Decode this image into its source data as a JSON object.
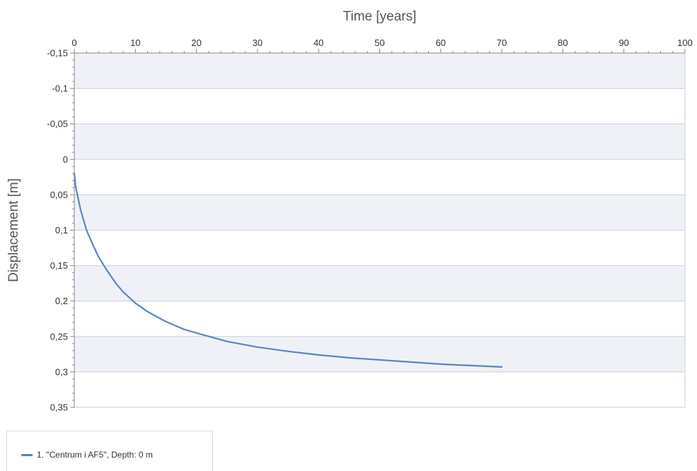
{
  "chart_data": {
    "type": "line",
    "xlabel": "Time [years]",
    "ylabel": "Displacement [m]",
    "xlim": [
      0,
      100
    ],
    "ylim": [
      -0.15,
      0.35
    ],
    "y_inverted": true,
    "x_axis_position": "top",
    "grid": true,
    "alternating_bands": true,
    "x_ticks": [
      "0",
      "10",
      "20",
      "30",
      "40",
      "50",
      "60",
      "70",
      "80",
      "90",
      "100"
    ],
    "y_ticks": [
      "-0,15",
      "-0,1",
      "-0,05",
      "0",
      "0,05",
      "0,1",
      "0,15",
      "0,2",
      "0,25",
      "0,3",
      "0,35"
    ],
    "legend_placement": "bottom-left",
    "series": [
      {
        "name": "1. \"Centrum i AF5\", Depth: 0 m",
        "color": "#5b84c4",
        "x": [
          0,
          0.25,
          0.5,
          1,
          1.5,
          2,
          3,
          4,
          5,
          6,
          7,
          8,
          9,
          10,
          12,
          15,
          18,
          20,
          25,
          30,
          35,
          40,
          45,
          50,
          55,
          60,
          65,
          70
        ],
        "y": [
          0.02,
          0.04,
          0.05,
          0.07,
          0.085,
          0.1,
          0.12,
          0.138,
          0.152,
          0.165,
          0.177,
          0.187,
          0.195,
          0.203,
          0.215,
          0.229,
          0.24,
          0.245,
          0.257,
          0.265,
          0.271,
          0.276,
          0.28,
          0.283,
          0.286,
          0.289,
          0.291,
          0.293
        ]
      }
    ]
  },
  "colors": {
    "band": "#eff1f6",
    "grid": "#c8cfdd",
    "axis": "#888888"
  }
}
